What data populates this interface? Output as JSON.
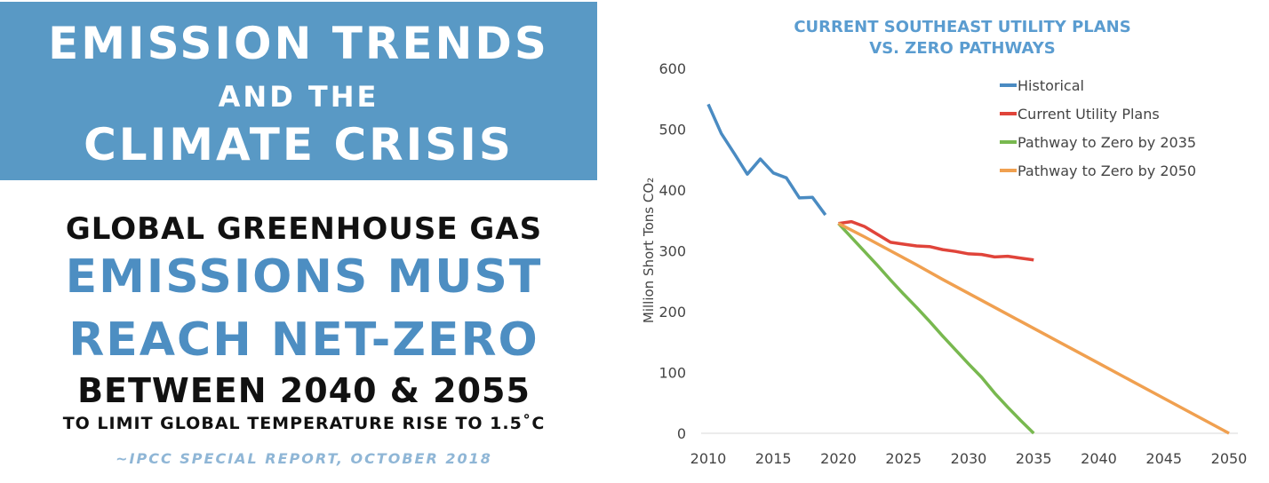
{
  "banner": {
    "line1": "EMISSION TRENDS",
    "line2": "AND THE",
    "line3": "CLIMATE CRISIS"
  },
  "message": {
    "line1": "GLOBAL GREENHOUSE GAS",
    "line2": "EMISSIONS MUST",
    "line3": "REACH NET-ZERO",
    "line4": "BETWEEN 2040 & 2055",
    "line5": "TO LIMIT GLOBAL TEMPERATURE RISE TO 1.5˚C",
    "source": "~IPCC SPECIAL REPORT, OCTOBER 2018"
  },
  "chart_data": {
    "type": "line",
    "title": [
      "CURRENT SOUTHEAST UTILITY PLANS",
      "VS. ZERO PATHWAYS"
    ],
    "xlabel": "",
    "ylabel": "Million Short Tons CO₂",
    "xlim": [
      2010,
      2050
    ],
    "ylim": [
      0,
      600
    ],
    "xticks": [
      2010,
      2015,
      2020,
      2025,
      2030,
      2035,
      2040,
      2045,
      2050
    ],
    "yticks": [
      0,
      100,
      200,
      300,
      400,
      500,
      600
    ],
    "grid": false,
    "legend_position": "top-right",
    "series": [
      {
        "name": "Historical",
        "color": "#4a8bc2",
        "x": [
          2010,
          2011,
          2012,
          2013,
          2014,
          2015,
          2016,
          2017,
          2018,
          2019
        ],
        "y": [
          541,
          493,
          460,
          426,
          451,
          428,
          420,
          387,
          388,
          359
        ]
      },
      {
        "name": "Current Utility Plans",
        "color": "#e0443a",
        "x": [
          2020,
          2021,
          2022,
          2023,
          2024,
          2025,
          2026,
          2027,
          2028,
          2029,
          2030,
          2031,
          2032,
          2033,
          2034,
          2035
        ],
        "y": [
          345,
          348,
          340,
          327,
          314,
          311,
          308,
          307,
          302,
          299,
          295,
          294,
          290,
          291,
          288,
          285
        ]
      },
      {
        "name": "Pathway to Zero by 2035",
        "color": "#78b84f",
        "x": [
          2020,
          2021,
          2022,
          2023,
          2024,
          2025,
          2026,
          2027,
          2028,
          2029,
          2030,
          2031,
          2032,
          2033,
          2034,
          2035
        ],
        "y": [
          345,
          322,
          299,
          276,
          252,
          229,
          207,
          184,
          160,
          137,
          114,
          92,
          66,
          43,
          21,
          0
        ]
      },
      {
        "name": "Pathway to Zero by 2050",
        "color": "#f0a050",
        "x": [
          2020,
          2022,
          2024,
          2026,
          2028,
          2030,
          2032,
          2034,
          2036,
          2038,
          2040,
          2042,
          2044,
          2046,
          2048,
          2050
        ],
        "y": [
          345,
          323,
          300,
          277,
          253,
          230,
          207,
          184,
          161,
          138,
          115,
          92,
          69,
          46,
          23,
          0
        ]
      }
    ]
  }
}
